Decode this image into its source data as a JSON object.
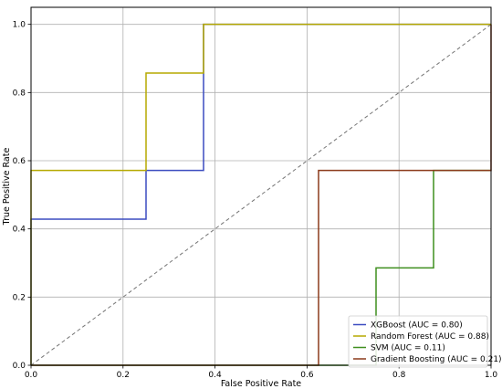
{
  "chart_data": {
    "type": "line",
    "title": "",
    "xlabel": "False Positive Rate",
    "ylabel": "True Positive Rate",
    "xlim": [
      0,
      1.0
    ],
    "ylim": [
      0,
      1.05
    ],
    "x_ticks": [
      "0.0",
      "0.2",
      "0.4",
      "0.6",
      "0.8",
      "1.0"
    ],
    "y_ticks": [
      "0.0",
      "0.2",
      "0.4",
      "0.6",
      "0.8",
      "1.0"
    ],
    "grid": true,
    "legend_position": "lower-right",
    "series": [
      {
        "name": "XGBoost (AUC = 0.80)",
        "color": "#3b4cc0",
        "x": [
          0,
          0,
          0.25,
          0.25,
          0.375,
          0.375,
          1.0
        ],
        "y": [
          0,
          0.4286,
          0.4286,
          0.5714,
          0.5714,
          1.0,
          1.0
        ]
      },
      {
        "name": "Random Forest (AUC = 0.88)",
        "color": "#b5a900",
        "x": [
          0,
          0,
          0.25,
          0.25,
          0.375,
          0.375,
          1.0
        ],
        "y": [
          0,
          0.5714,
          0.5714,
          0.8571,
          0.8571,
          1.0,
          1.0
        ]
      },
      {
        "name": "SVM (AUC = 0.11)",
        "color": "#3f8f1f",
        "x": [
          0,
          0.75,
          0.75,
          0.875,
          0.875,
          1.0
        ],
        "y": [
          0,
          0,
          0.2857,
          0.2857,
          0.5714,
          0.5714
        ]
      },
      {
        "name": "Gradient Boosting (AUC = 0.21)",
        "color": "#8b3a1a",
        "x": [
          0,
          0.625,
          0.625,
          1.0,
          1.0
        ],
        "y": [
          0,
          0,
          0.5714,
          0.5714,
          1.0
        ]
      }
    ],
    "reference_line": {
      "x": [
        0,
        1
      ],
      "y": [
        0,
        1
      ],
      "color": "#777777",
      "style": "dashed"
    }
  }
}
